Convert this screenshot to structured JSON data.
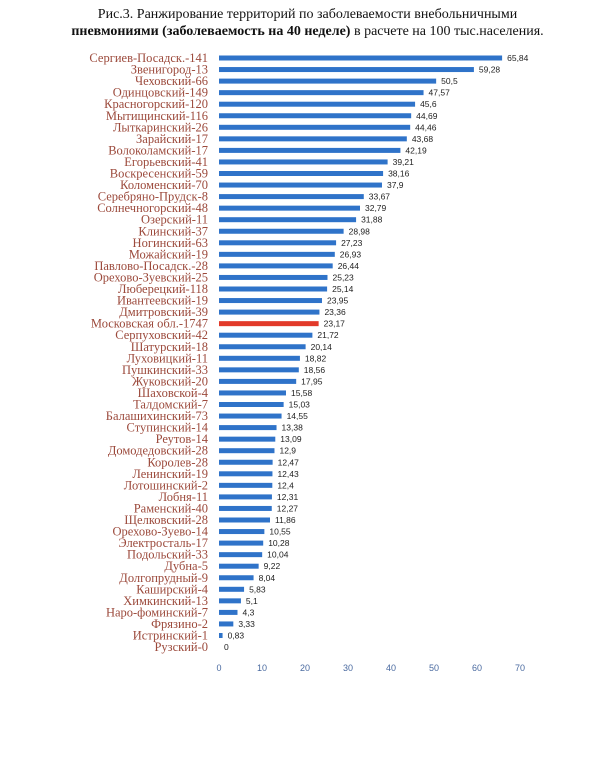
{
  "caption": {
    "line1": "Рис.3. Ранжирование территорий по заболеваемости внебольничными",
    "line2_bold": "пневмониями (заболеваемость на 40 неделе)",
    "line2_rest": " в расчете на 100 тыс.населения."
  },
  "colors": {
    "bar": "#2f73c9",
    "highlight": "#e23a2a",
    "category_text": "#9c4a3c"
  },
  "chart_data": {
    "type": "bar",
    "orientation": "horizontal",
    "highlighted_category": "Московская обл.-1747",
    "xlim": [
      0,
      70
    ],
    "xticks": [
      0,
      10,
      20,
      30,
      40,
      50,
      60,
      70
    ],
    "grid": false,
    "categories": [
      "Сергиев-Посадск.-141",
      "Звенигород-13",
      "Чеховский-66",
      "Одинцовский-149",
      "Красногорский-120",
      "Мытищинский-116",
      "Лыткаринский-26",
      "Зарайский-17",
      "Волоколамский-17",
      "Егорьевский-41",
      "Воскресенский-59",
      "Коломенский-70",
      "Серебряно-Прудск-8",
      "Солнечногорский-48",
      "Озерский-11",
      "Клинский-37",
      "Ногинский-63",
      "Можайский-19",
      "Павлово-Посадск.-28",
      "Орехово-Зуевский-25",
      "Люберецкий-118",
      "Ивантеевский-19",
      "Дмитровский-39",
      "Московская обл.-1747",
      "Серпуховский-42",
      "Шатурский-18",
      "Луховицкий-11",
      "Пушкинский-33",
      "Жуковский-20",
      "Шаховской-4",
      "Талдомский-7",
      "Балашихинский-73",
      "Ступинский-14",
      "Реутов-14",
      "Домодедовский-28",
      "Королев-28",
      "Ленинский-19",
      "Лотошинский-2",
      "Лобня-11",
      "Раменский-40",
      "Щелковский-28",
      "Орехово-Зуево-14",
      "Электросталь-17",
      "Подольский-33",
      "Дубна-5",
      "Долгопрудный-9",
      "Каширский-4",
      "Химкинский-13",
      "Наро-фоминский-7",
      "Фрязино-2",
      "Истринский-1",
      "Рузский-0"
    ],
    "values": [
      65.84,
      59.28,
      50.5,
      47.57,
      45.6,
      44.69,
      44.46,
      43.68,
      42.19,
      39.21,
      38.16,
      37.9,
      33.67,
      32.79,
      31.88,
      28.98,
      27.23,
      26.93,
      26.44,
      25.23,
      25.14,
      23.95,
      23.36,
      23.17,
      21.72,
      20.14,
      18.82,
      18.56,
      17.95,
      15.58,
      15.03,
      14.55,
      13.38,
      13.09,
      12.9,
      12.47,
      12.43,
      12.4,
      12.31,
      12.27,
      11.86,
      10.55,
      10.28,
      10.04,
      9.22,
      8.04,
      5.83,
      5.1,
      4.3,
      3.33,
      0.83,
      0
    ],
    "value_labels": [
      "65,84",
      "59,28",
      "50,5",
      "47,57",
      "45,6",
      "44,69",
      "44,46",
      "43,68",
      "42,19",
      "39,21",
      "38,16",
      "37,9",
      "33,67",
      "32,79",
      "31,88",
      "28,98",
      "27,23",
      "26,93",
      "26,44",
      "25,23",
      "25,14",
      "23,95",
      "23,36",
      "23,17",
      "21,72",
      "20,14",
      "18,82",
      "18,56",
      "17,95",
      "15,58",
      "15,03",
      "14,55",
      "13,38",
      "13,09",
      "12,9",
      "12,47",
      "12,43",
      "12,4",
      "12,31",
      "12,27",
      "11,86",
      "10,55",
      "10,28",
      "10,04",
      "9,22",
      "8,04",
      "5,83",
      "5,1",
      "4,3",
      "3,33",
      "0,83",
      "0"
    ]
  }
}
